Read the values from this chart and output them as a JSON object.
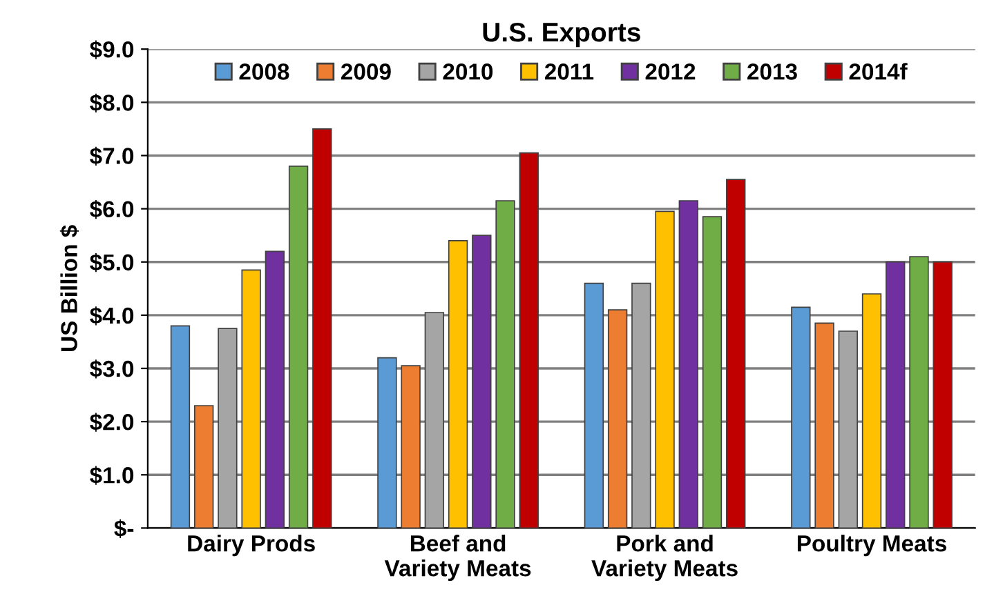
{
  "chart_data": {
    "type": "bar",
    "title": "U.S. Exports",
    "ylabel": "US Billion $",
    "categories": [
      "Dairy Prods",
      "Beef and\nVariety Meats",
      "Pork and\nVariety Meats",
      "Poultry Meats"
    ],
    "series": [
      {
        "name": "2008",
        "color": "#5b9bd5",
        "values": [
          3.8,
          3.2,
          4.6,
          4.15
        ]
      },
      {
        "name": "2009",
        "color": "#ed7d31",
        "values": [
          2.3,
          3.05,
          4.1,
          3.85
        ]
      },
      {
        "name": "2010",
        "color": "#a5a5a5",
        "values": [
          3.75,
          4.05,
          4.6,
          3.7
        ]
      },
      {
        "name": "2011",
        "color": "#ffc000",
        "values": [
          4.85,
          5.4,
          5.95,
          4.4
        ]
      },
      {
        "name": "2012",
        "color": "#7030a0",
        "values": [
          5.2,
          5.5,
          6.15,
          5.0
        ]
      },
      {
        "name": "2013",
        "color": "#70ad47",
        "values": [
          6.8,
          6.15,
          5.85,
          5.1
        ]
      },
      {
        "name": "2014f",
        "color": "#c00000",
        "values": [
          7.5,
          7.05,
          6.55,
          5.0
        ]
      }
    ],
    "ylim": [
      0,
      9
    ],
    "yticks": [
      {
        "value": 0,
        "label": "$-"
      },
      {
        "value": 1,
        "label": "$1.0"
      },
      {
        "value": 2,
        "label": "$2.0"
      },
      {
        "value": 3,
        "label": "$3.0"
      },
      {
        "value": 4,
        "label": "$4.0"
      },
      {
        "value": 5,
        "label": "$5.0"
      },
      {
        "value": 6,
        "label": "$6.0"
      },
      {
        "value": 7,
        "label": "$7.0"
      },
      {
        "value": 8,
        "label": "$8.0"
      },
      {
        "value": 9,
        "label": "$9.0"
      }
    ],
    "grid": "y",
    "legend": "top"
  }
}
